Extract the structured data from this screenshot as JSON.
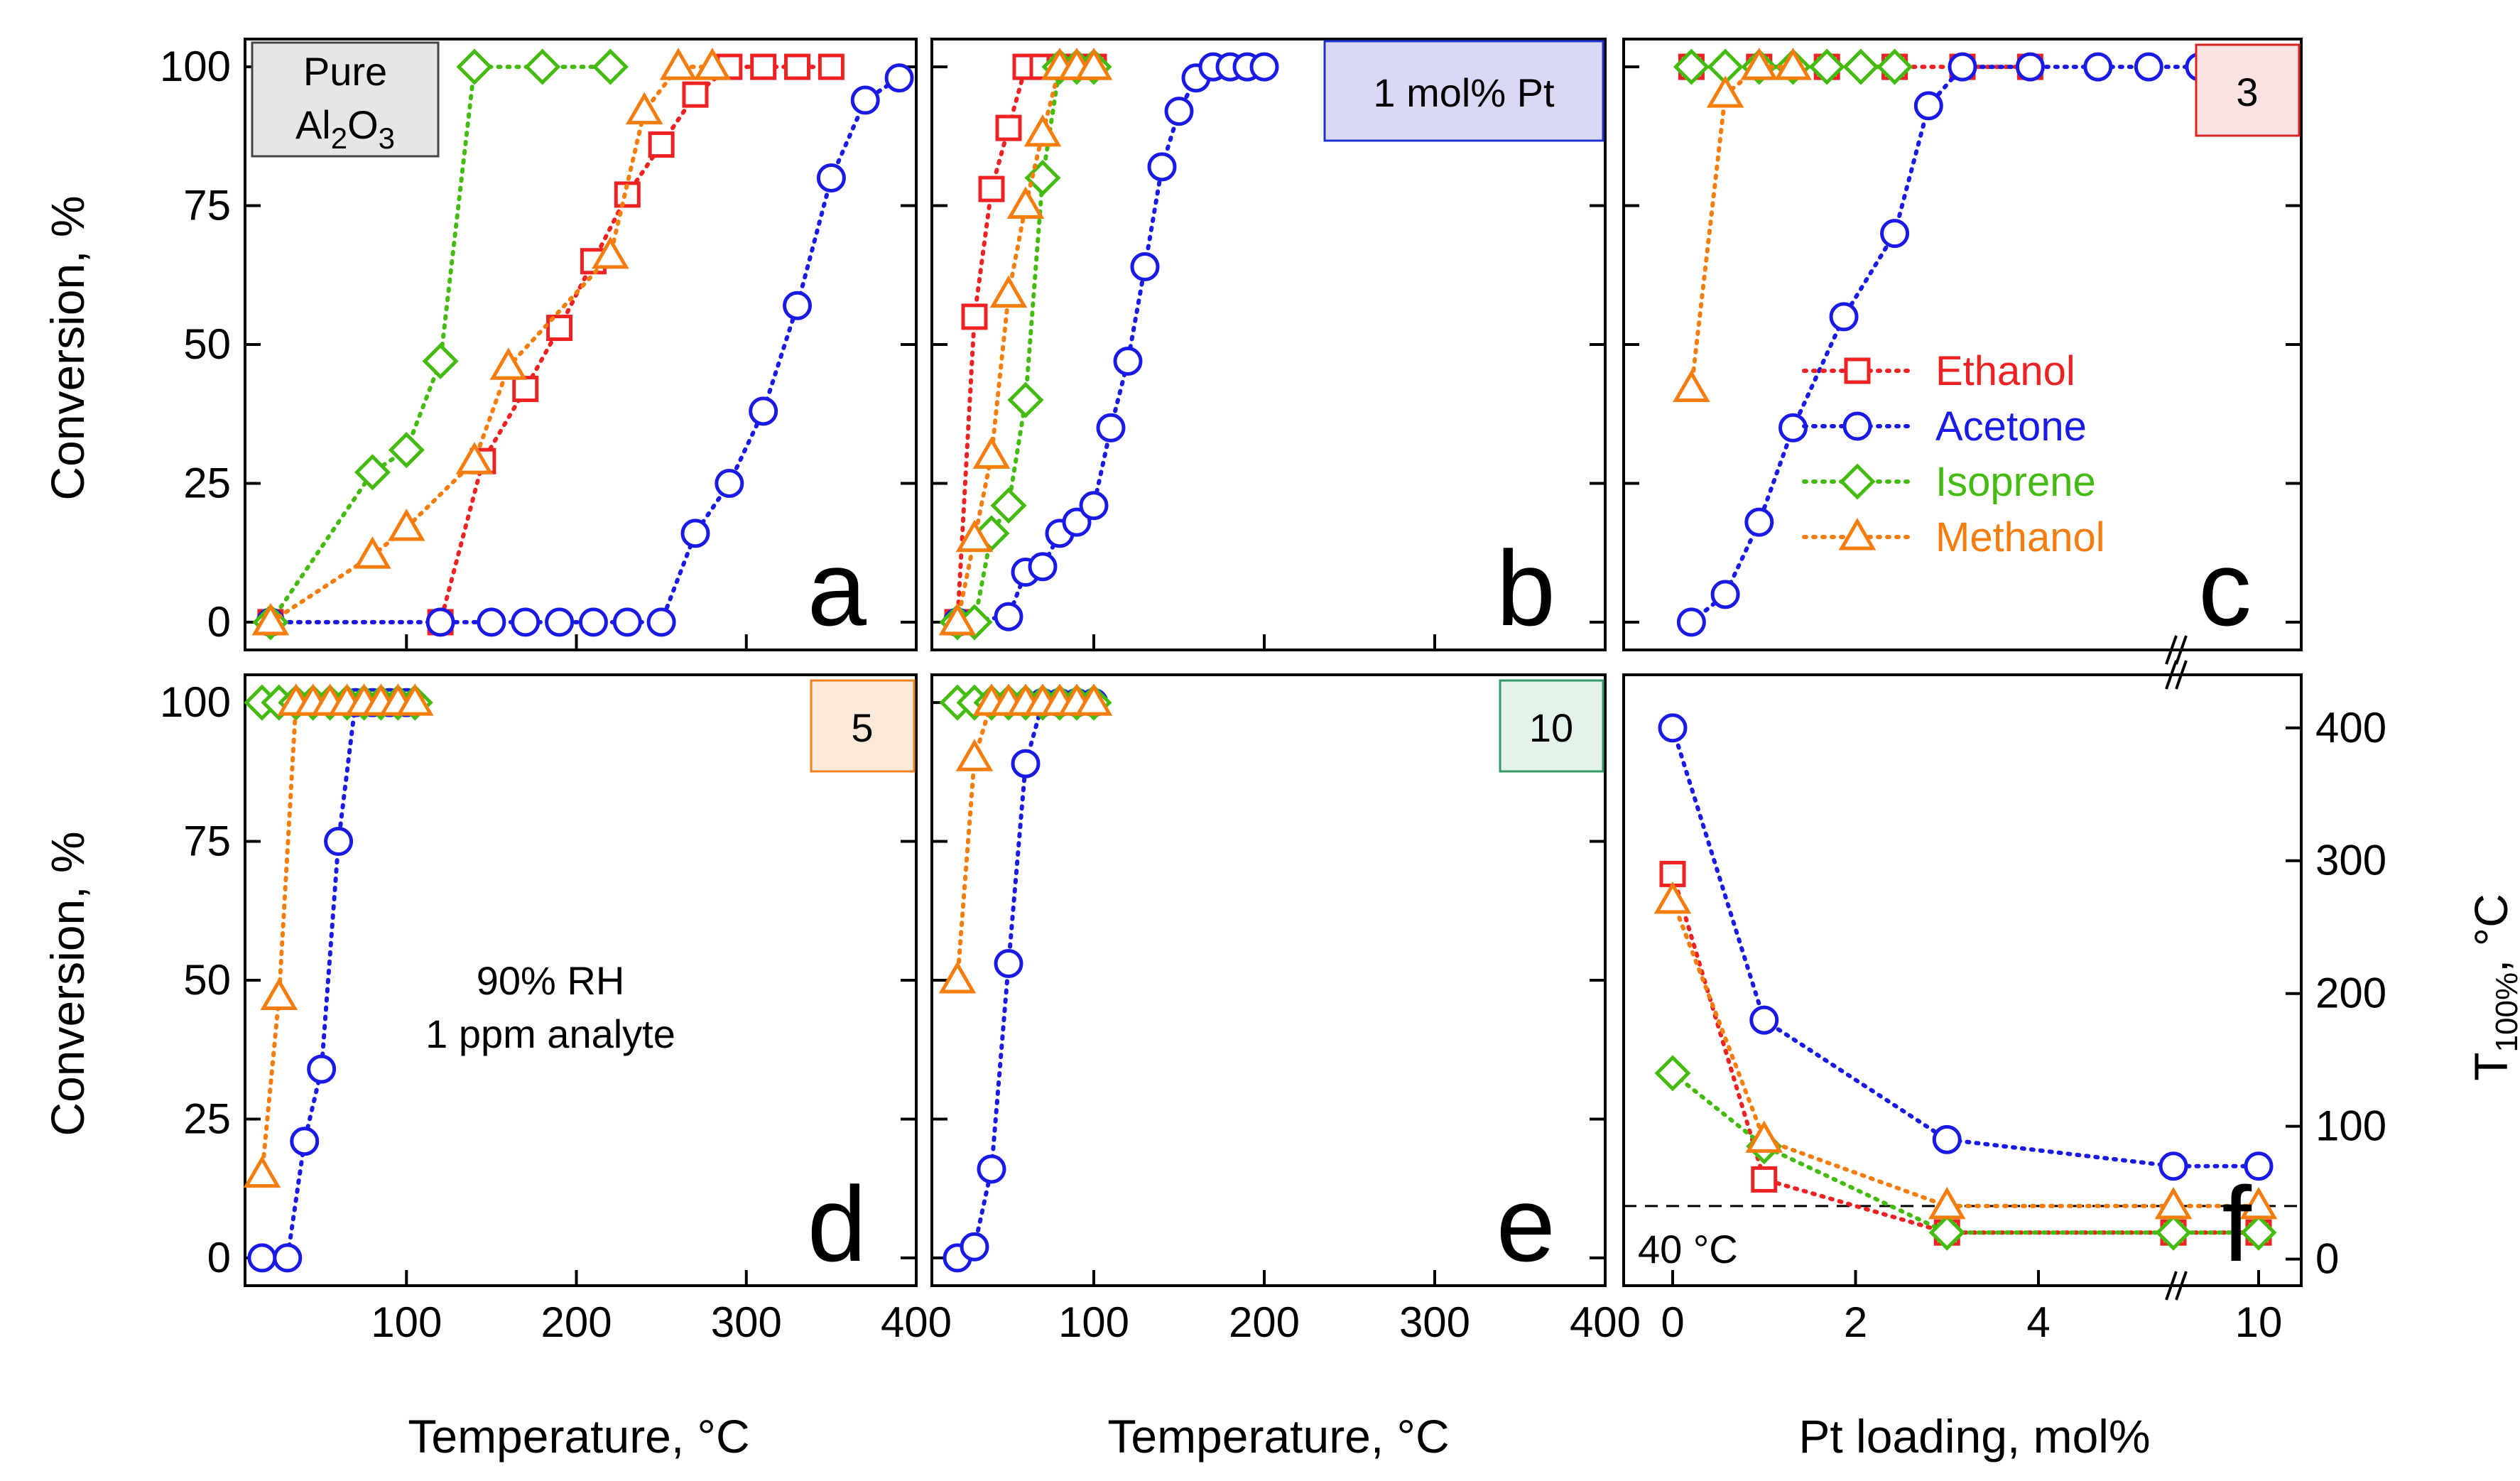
{
  "colors": {
    "Ethanol": "#ee2222",
    "Acetone": "#1a1ae6",
    "Isoprene": "#44bb11",
    "Methanol": "#f47d0e"
  },
  "common": {
    "ylabel": "Conversion, %",
    "xlabel_temp": "Temperature, °C",
    "xlabel_pt": "Pt loading, mol%",
    "ylabel_right": "T",
    "ylabel_right_sub": "100%",
    "ylabel_right_unit": ", °C",
    "annotation_line1": "90% RH",
    "annotation_line2": "1 ppm analyte",
    "dashed_label": "40 °C"
  },
  "legend": [
    {
      "name": "Ethanol",
      "marker": "square"
    },
    {
      "name": "Acetone",
      "marker": "circle"
    },
    {
      "name": "Isoprene",
      "marker": "diamond"
    },
    {
      "name": "Methanol",
      "marker": "triangle"
    }
  ],
  "chart_data": [
    {
      "panel": "a",
      "type": "scatter",
      "xlim": [
        5,
        400
      ],
      "ylim": [
        -5,
        105
      ],
      "badge": {
        "text": "Pure Al2O3",
        "line1": "Pure",
        "line2_main": "Al",
        "line2_sub1": "2",
        "line2_mid": "O",
        "line2_sub2": "3",
        "bg": "#e6e6e6",
        "border": "#444444"
      },
      "series": [
        {
          "name": "Ethanol",
          "x": [
            20,
            120,
            145,
            170,
            190,
            210,
            230,
            250,
            270,
            290,
            310,
            330,
            350
          ],
          "y": [
            0,
            0,
            29,
            42,
            53,
            65,
            77,
            86,
            95,
            100,
            100,
            100,
            100
          ]
        },
        {
          "name": "Acetone",
          "x": [
            20,
            120,
            150,
            170,
            190,
            210,
            230,
            250,
            270,
            290,
            310,
            330,
            350,
            370,
            390
          ],
          "y": [
            0,
            0,
            0,
            0,
            0,
            0,
            0,
            0,
            16,
            25,
            38,
            57,
            80,
            94,
            98
          ]
        },
        {
          "name": "Isoprene",
          "x": [
            20,
            80,
            100,
            120,
            140,
            180,
            220
          ],
          "y": [
            0,
            27,
            31,
            47,
            100,
            100,
            100
          ]
        },
        {
          "name": "Methanol",
          "x": [
            20,
            80,
            100,
            140,
            160,
            220,
            240,
            260,
            280
          ],
          "y": [
            0,
            12,
            17,
            29,
            46,
            66,
            92,
            100,
            100
          ]
        }
      ]
    },
    {
      "panel": "b",
      "type": "scatter",
      "xlim": [
        5,
        400
      ],
      "ylim": [
        -5,
        105
      ],
      "badge": {
        "text": "1 mol% Pt",
        "bg": "#d9d9f5",
        "border": "#2233cc"
      },
      "series": [
        {
          "name": "Ethanol",
          "x": [
            20,
            30,
            40,
            50,
            60,
            70,
            80,
            90,
            100
          ],
          "y": [
            0,
            55,
            78,
            89,
            100,
            100,
            100,
            100,
            100
          ]
        },
        {
          "name": "Acetone",
          "x": [
            20,
            50,
            60,
            70,
            80,
            90,
            100,
            110,
            120,
            130,
            140,
            150,
            160,
            170,
            180,
            190,
            200
          ],
          "y": [
            0,
            1,
            9,
            10,
            16,
            18,
            21,
            35,
            47,
            64,
            82,
            92,
            98,
            100,
            100,
            100,
            100
          ]
        },
        {
          "name": "Isoprene",
          "x": [
            20,
            30,
            40,
            50,
            60,
            70,
            80,
            90,
            100
          ],
          "y": [
            0,
            0,
            16,
            21,
            40,
            80,
            100,
            100,
            100
          ]
        },
        {
          "name": "Methanol",
          "x": [
            20,
            30,
            40,
            50,
            60,
            70,
            80,
            90,
            100
          ],
          "y": [
            0,
            15,
            30,
            59,
            75,
            88,
            100,
            100,
            100
          ]
        }
      ]
    },
    {
      "panel": "c",
      "type": "scatter",
      "xlim": [
        -0.2,
        1.8
      ],
      "ylim": [
        -5,
        105
      ],
      "badge": {
        "text": "3",
        "bg": "#fbe2e2",
        "border": "#dd2222"
      },
      "series": [
        {
          "name": "Ethanol",
          "x": [
            0,
            0.2,
            0.4,
            0.6,
            0.8,
            1.0
          ],
          "y": [
            100,
            100,
            100,
            100,
            100,
            100
          ]
        },
        {
          "name": "Acetone",
          "x": [
            0,
            0.1,
            0.2,
            0.3,
            0.45,
            0.6,
            0.7,
            0.8,
            1.0,
            1.2,
            1.35,
            1.5
          ],
          "y": [
            0,
            5,
            18,
            35,
            55,
            70,
            93,
            100,
            100,
            100,
            100,
            100
          ]
        },
        {
          "name": "Isoprene",
          "x": [
            0,
            0.1,
            0.2,
            0.3,
            0.4,
            0.5,
            0.6
          ],
          "y": [
            100,
            100,
            100,
            100,
            100,
            100,
            100
          ]
        },
        {
          "name": "Methanol",
          "x": [
            0,
            0.1,
            0.2,
            0.3
          ],
          "y": [
            42,
            95,
            100,
            100
          ]
        }
      ]
    },
    {
      "panel": "d",
      "type": "scatter",
      "xlim": [
        5,
        400
      ],
      "ylim": [
        -5,
        105
      ],
      "badge": {
        "text": "5",
        "bg": "#fde9d9",
        "border": "#f08020"
      },
      "series": [
        {
          "name": "Ethanol",
          "x": [],
          "y": []
        },
        {
          "name": "Acetone",
          "x": [
            15,
            30,
            40,
            50,
            60,
            70,
            80,
            90,
            100
          ],
          "y": [
            0,
            0,
            21,
            34,
            75,
            100,
            100,
            100,
            100
          ]
        },
        {
          "name": "Isoprene",
          "x": [
            15,
            25,
            35,
            45,
            55,
            65,
            75,
            85,
            95,
            105
          ],
          "y": [
            100,
            100,
            100,
            100,
            100,
            100,
            100,
            100,
            100,
            100
          ]
        },
        {
          "name": "Methanol",
          "x": [
            15,
            25,
            35,
            45,
            55,
            65,
            75,
            85,
            95,
            105
          ],
          "y": [
            15,
            47,
            100,
            100,
            100,
            100,
            100,
            100,
            100,
            100
          ]
        }
      ]
    },
    {
      "panel": "e",
      "type": "scatter",
      "xlim": [
        5,
        400
      ],
      "ylim": [
        -5,
        105
      ],
      "badge": {
        "text": "10",
        "bg": "#e3f3ea",
        "border": "#339966"
      },
      "series": [
        {
          "name": "Ethanol",
          "x": [],
          "y": []
        },
        {
          "name": "Acetone",
          "x": [
            20,
            30,
            40,
            50,
            60,
            70,
            80,
            90,
            100
          ],
          "y": [
            0,
            2,
            16,
            53,
            89,
            100,
            100,
            100,
            100
          ]
        },
        {
          "name": "Isoprene",
          "x": [
            20,
            30,
            40,
            50,
            60,
            70,
            80,
            90,
            100
          ],
          "y": [
            100,
            100,
            100,
            100,
            100,
            100,
            100,
            100,
            100
          ]
        },
        {
          "name": "Methanol",
          "x": [
            20,
            30,
            40,
            50,
            60,
            70,
            80,
            90,
            100
          ],
          "y": [
            50,
            90,
            100,
            100,
            100,
            100,
            100,
            100,
            100
          ]
        }
      ]
    },
    {
      "panel": "f",
      "type": "line",
      "x_ticks": [
        0,
        2,
        4,
        10
      ],
      "y_right_ticks": [
        0,
        100,
        200,
        300,
        400
      ],
      "ylim": [
        -20,
        440
      ],
      "reference_line": 40,
      "series": [
        {
          "name": "Ethanol",
          "x": [
            0,
            1,
            3,
            5,
            10
          ],
          "y": [
            290,
            60,
            20,
            20,
            20
          ]
        },
        {
          "name": "Acetone",
          "x": [
            0,
            1,
            3,
            5,
            10
          ],
          "y": [
            400,
            180,
            90,
            70,
            70
          ]
        },
        {
          "name": "Isoprene",
          "x": [
            0,
            1,
            3,
            5,
            10
          ],
          "y": [
            140,
            85,
            20,
            20,
            20
          ]
        },
        {
          "name": "Methanol",
          "x": [
            0,
            1,
            3,
            5,
            10
          ],
          "y": [
            270,
            90,
            40,
            40,
            40
          ]
        }
      ]
    }
  ]
}
